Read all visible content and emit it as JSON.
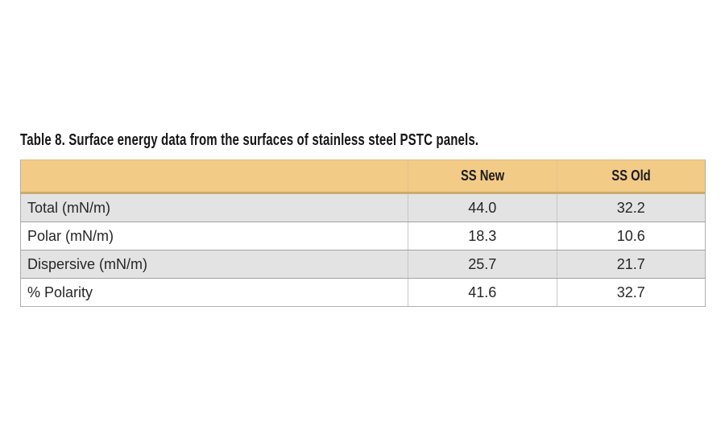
{
  "caption": "Table 8. Surface energy data from the surfaces of stainless steel PSTC panels.",
  "table": {
    "columns": [
      {
        "label": ""
      },
      {
        "label": "SS New"
      },
      {
        "label": "SS Old"
      }
    ],
    "rows": [
      {
        "label": "Total (mN/m)",
        "values": [
          "44.0",
          "32.2"
        ]
      },
      {
        "label": "Polar (mN/m)",
        "values": [
          "18.3",
          "10.6"
        ]
      },
      {
        "label": "Dispersive (mN/m)",
        "values": [
          "25.7",
          "21.7"
        ]
      },
      {
        "label": "% Polarity",
        "values": [
          "41.6",
          "32.7"
        ]
      }
    ]
  },
  "colors": {
    "header_bg": "#F2CB87",
    "header_border": "#C9AC72",
    "alt_row_bg": "#E4E3E3",
    "row_bg": "#FFFFFF",
    "row_border": "#A3A2A2",
    "column_divider": "#C7C6C6",
    "text": "#262626"
  },
  "chart_data": {
    "type": "table",
    "title": "Table 8. Surface energy data from the surfaces of stainless steel PSTC panels.",
    "columns": [
      "",
      "SS New",
      "SS Old"
    ],
    "rows": [
      [
        "Total (mN/m)",
        44.0,
        32.2
      ],
      [
        "Polar (mN/m)",
        18.3,
        10.6
      ],
      [
        "Dispersive (mN/m)",
        25.7,
        21.7
      ],
      [
        "% Polarity",
        41.6,
        32.7
      ]
    ]
  }
}
